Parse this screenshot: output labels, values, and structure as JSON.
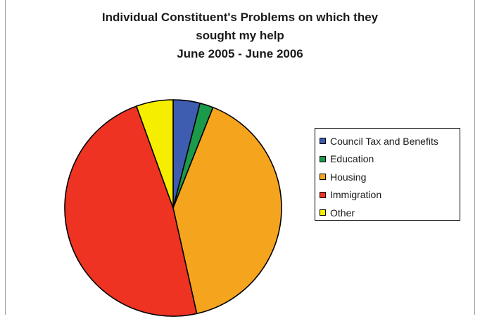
{
  "chart_data": {
    "type": "pie",
    "title_lines": [
      "Individual Constituent's Problems on which they",
      "sought my help",
      "June 2005 - June 2006"
    ],
    "categories": [
      "Council Tax and Benefits",
      "Education",
      "Housing",
      "Immigration",
      "Other"
    ],
    "values": [
      4.0,
      2.0,
      40.5,
      48.0,
      5.5
    ],
    "value_unit": "percent (estimated)",
    "colors": [
      "#3e5cb0",
      "#1a9a4a",
      "#f5a51d",
      "#ee3322",
      "#f6ee00"
    ],
    "start_angle_deg": 0,
    "direction": "clockwise",
    "legend_position": "right",
    "legend": [
      {
        "label": "Council Tax and Benefits",
        "color": "#3e5cb0"
      },
      {
        "label": "Education",
        "color": "#1a9a4a"
      },
      {
        "label": "Housing",
        "color": "#f5a51d"
      },
      {
        "label": "Immigration",
        "color": "#ee3322"
      },
      {
        "label": "Other",
        "color": "#f6ee00"
      }
    ]
  }
}
